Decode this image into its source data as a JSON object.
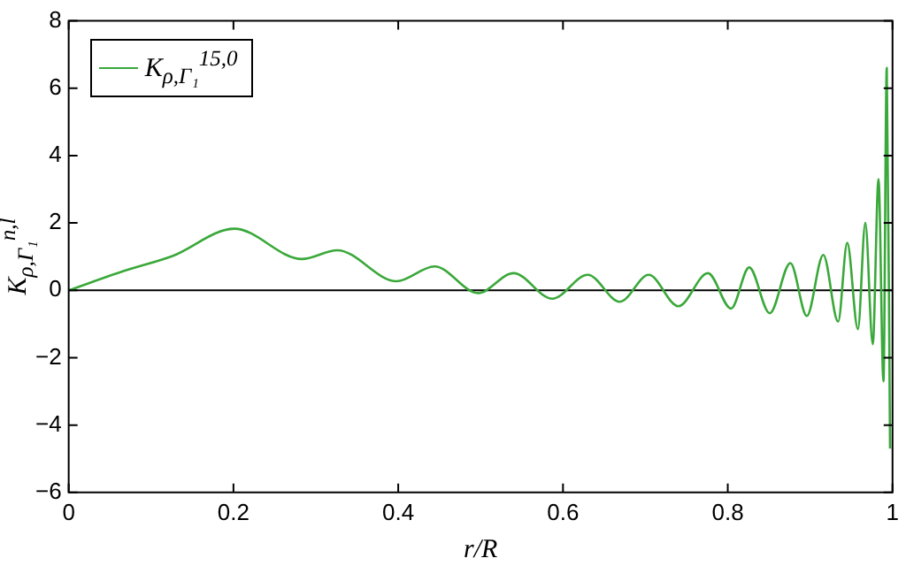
{
  "chart_data": {
    "type": "line",
    "xlabel": "r/R",
    "ylabel": "K$_{ρ,Γ₁}$$^{n,l}$",
    "xlim": [
      0,
      1
    ],
    "ylim": [
      -6,
      8
    ],
    "xticks": [
      0,
      0.2,
      0.4,
      0.6,
      0.8,
      1
    ],
    "yticks": [
      {
        "value": -6,
        "label": "−6"
      },
      {
        "value": -4,
        "label": "−4"
      },
      {
        "value": -2,
        "label": "−2"
      },
      0,
      2,
      4,
      6,
      8
    ],
    "grid": false,
    "legend": "top left",
    "line_style": "solid",
    "marker": "none",
    "ref_lines": [
      {
        "axis": "y",
        "value": 0,
        "color": "#000000"
      }
    ],
    "series": [
      {
        "name": "K$_{ρ,Γ₁}$$^{15,0}$",
        "color": "#3aa83a",
        "x": [
          0,
          0.069,
          0.126,
          0.201,
          0.283,
          0.326,
          0.398,
          0.444,
          0.497,
          0.54,
          0.587,
          0.63,
          0.669,
          0.704,
          0.74,
          0.776,
          0.804,
          0.826,
          0.851,
          0.876,
          0.896,
          0.916,
          0.934,
          0.945,
          0.958,
          0.967,
          0.976,
          0.983,
          0.989,
          0.993,
          0.997
        ],
        "values": [
          0,
          0.59,
          1.02,
          1.83,
          0.93,
          1.19,
          0.27,
          0.71,
          -0.08,
          0.51,
          -0.25,
          0.46,
          -0.34,
          0.46,
          -0.47,
          0.51,
          -0.54,
          0.68,
          -0.68,
          0.81,
          -0.76,
          1.05,
          -0.93,
          1.41,
          -1.15,
          2.0,
          -1.6,
          3.3,
          -2.7,
          6.6,
          -4.7
        ]
      }
    ]
  }
}
